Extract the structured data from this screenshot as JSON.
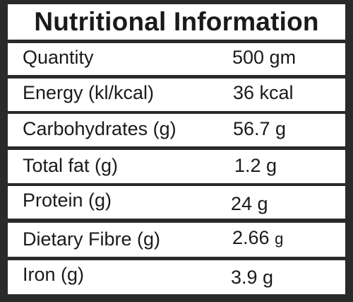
{
  "title": "Nutritional Information",
  "rows": [
    {
      "label": "Quantity",
      "value": "500 gm"
    },
    {
      "label": "Energy (kl/kcal)",
      "value": "36 kcal"
    },
    {
      "label": "Carbohydrates (g)",
      "value": "56.7 g"
    },
    {
      "label": "Total fat (g)",
      "value": "1.2 g"
    },
    {
      "label": "Protein (g)",
      "value": "24 g"
    },
    {
      "label": "Dietary Fibre (g)",
      "value_number": "2.66",
      "value_unit": "g"
    },
    {
      "label": "Iron (g)",
      "value": "3.9 g"
    }
  ],
  "colors": {
    "border": "#2a2a2a",
    "text": "#1a1a1a",
    "background": "#ffffff"
  }
}
